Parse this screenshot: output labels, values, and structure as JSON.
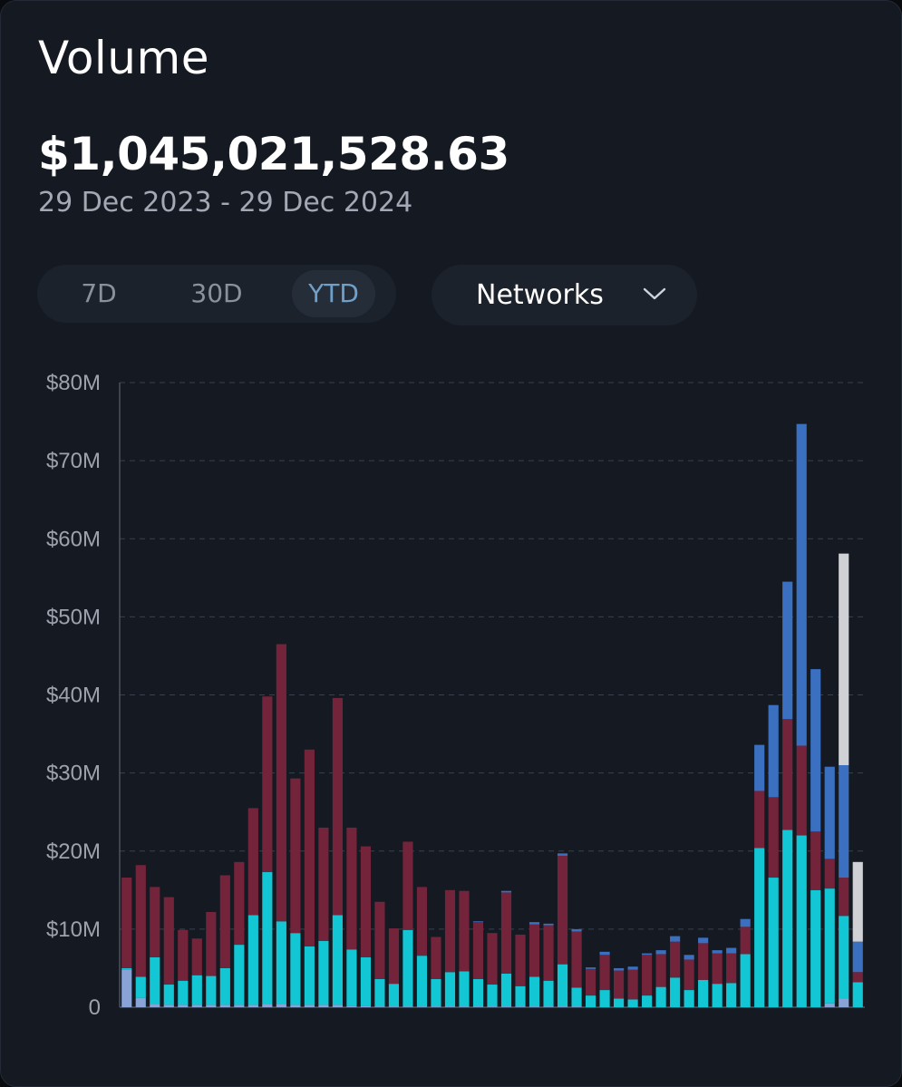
{
  "card": {
    "title": "Volume",
    "total": "$1,045,021,528.63",
    "date_range": "29 Dec 2023 - 29 Dec 2024"
  },
  "periods": {
    "p7d": "7D",
    "p30d": "30D",
    "ytd": "YTD",
    "selected": "YTD"
  },
  "networks": {
    "label": "Networks",
    "icon": "chevron-down-icon"
  },
  "colors": {
    "background": "#141922",
    "lavender": "#8aa3d6",
    "cyan": "#13c6d3",
    "maroon": "#74243a",
    "blue": "#3a70bf",
    "gray": "#cfd1d4"
  },
  "chart_data": {
    "type": "bar",
    "stacked": true,
    "grid": true,
    "ylim": [
      0,
      80
    ],
    "y_ticks": [
      "0",
      "$10M",
      "$20M",
      "$30M",
      "$40M",
      "$50M",
      "$60M",
      "$70M",
      "$80M"
    ],
    "y_tick_values": [
      0,
      10,
      20,
      30,
      40,
      50,
      60,
      70,
      80
    ],
    "unit": "$M",
    "series_colors": [
      "#8aa3d6",
      "#13c6d3",
      "#74243a",
      "#3a70bf",
      "#cfd1d4"
    ],
    "bars": [
      [
        4.8,
        0.2,
        11.6,
        0,
        0
      ],
      [
        1.2,
        2.7,
        14.3,
        0,
        0
      ],
      [
        0.4,
        6.0,
        9.0,
        0,
        0
      ],
      [
        0.3,
        2.6,
        11.2,
        0,
        0
      ],
      [
        0.3,
        3.1,
        6.5,
        0,
        0
      ],
      [
        0.3,
        3.8,
        4.7,
        0,
        0
      ],
      [
        0.3,
        3.7,
        8.2,
        0,
        0
      ],
      [
        0.3,
        4.7,
        11.9,
        0,
        0
      ],
      [
        0.3,
        7.7,
        10.6,
        0,
        0
      ],
      [
        0.3,
        11.5,
        13.7,
        0,
        0
      ],
      [
        0.4,
        16.9,
        22.5,
        0,
        0
      ],
      [
        0.4,
        10.6,
        35.5,
        0,
        0
      ],
      [
        0.3,
        9.2,
        19.8,
        0,
        0
      ],
      [
        0.3,
        7.5,
        25.2,
        0,
        0
      ],
      [
        0.3,
        8.2,
        14.5,
        0,
        0
      ],
      [
        0.3,
        11.5,
        27.8,
        0,
        0
      ],
      [
        0.2,
        7.2,
        15.6,
        0,
        0
      ],
      [
        0.2,
        6.2,
        14.2,
        0,
        0
      ],
      [
        0.1,
        3.5,
        9.9,
        0,
        0
      ],
      [
        0.1,
        2.9,
        7.1,
        0,
        0
      ],
      [
        0.1,
        9.8,
        11.3,
        0,
        0
      ],
      [
        0.1,
        6.5,
        8.8,
        0,
        0
      ],
      [
        0.1,
        3.5,
        5.4,
        0,
        0
      ],
      [
        0.1,
        4.4,
        10.5,
        0,
        0
      ],
      [
        0.1,
        4.5,
        10.3,
        0,
        0
      ],
      [
        0.1,
        3.5,
        7.3,
        0.1,
        0
      ],
      [
        0.1,
        2.8,
        6.6,
        0,
        0
      ],
      [
        0.1,
        4.2,
        10.4,
        0.2,
        0
      ],
      [
        0.1,
        2.6,
        6.6,
        0,
        0
      ],
      [
        0.1,
        3.8,
        6.7,
        0.3,
        0
      ],
      [
        0.1,
        3.3,
        7.1,
        0.2,
        0
      ],
      [
        0.1,
        5.4,
        13.9,
        0.3,
        0
      ],
      [
        0.1,
        2.4,
        7.2,
        0.3,
        0
      ],
      [
        0,
        1.5,
        3.4,
        0.2,
        0
      ],
      [
        0,
        2.2,
        4.5,
        0.4,
        0
      ],
      [
        0,
        1.1,
        3.6,
        0.3,
        0
      ],
      [
        0,
        1.0,
        3.8,
        0.4,
        0
      ],
      [
        0,
        1.5,
        5.2,
        0.2,
        0
      ],
      [
        0,
        2.6,
        4.2,
        0.5,
        0
      ],
      [
        0,
        3.8,
        4.6,
        0.7,
        0
      ],
      [
        0,
        2.2,
        3.9,
        0.6,
        0
      ],
      [
        0,
        3.5,
        4.7,
        0.7,
        0
      ],
      [
        0,
        3.0,
        3.9,
        0.4,
        0
      ],
      [
        0,
        3.1,
        3.8,
        0.7,
        0
      ],
      [
        0,
        6.8,
        3.5,
        1.0,
        0
      ],
      [
        0,
        20.4,
        7.3,
        5.9,
        0
      ],
      [
        0,
        16.6,
        10.3,
        11.8,
        0
      ],
      [
        0,
        22.7,
        14.2,
        17.6,
        0
      ],
      [
        0,
        22.0,
        11.5,
        41.2,
        0
      ],
      [
        0,
        15.0,
        7.5,
        20.8,
        0
      ],
      [
        0.5,
        14.7,
        3.8,
        11.8,
        0
      ],
      [
        1.1,
        10.6,
        4.9,
        14.4,
        27.1
      ],
      [
        0,
        3.2,
        1.3,
        3.9,
        10.2
      ]
    ]
  }
}
